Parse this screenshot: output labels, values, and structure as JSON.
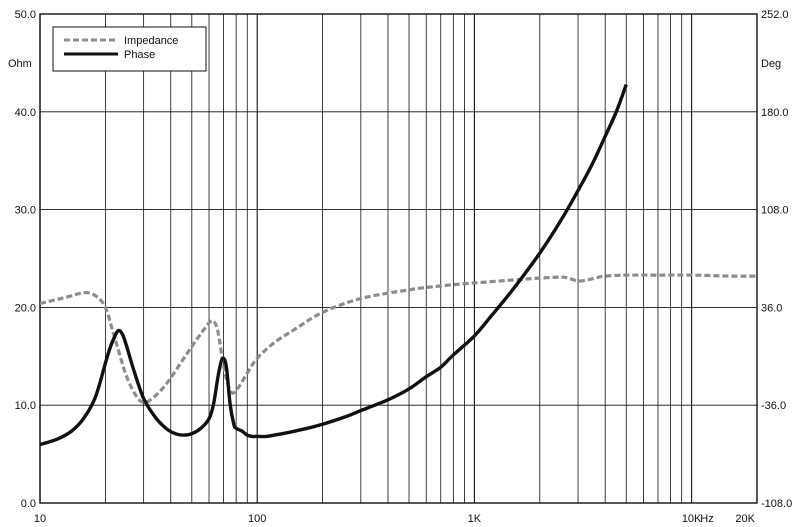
{
  "chart_data": {
    "type": "line",
    "x_scale": "log",
    "xlim": [
      10,
      20000
    ],
    "x_ticks": [
      {
        "value": 10,
        "label": "10"
      },
      {
        "value": 100,
        "label": "100"
      },
      {
        "value": 1000,
        "label": "1K"
      },
      {
        "value": 10000,
        "label": "10K"
      },
      {
        "value": 20000,
        "label": "20K"
      }
    ],
    "x_unit": "Hz",
    "y_left": {
      "unit": "Ohm",
      "lim": [
        0,
        50
      ],
      "ticks": [
        "0.0",
        "10.0",
        "20.0",
        "30.0",
        "40.0",
        "50.0"
      ]
    },
    "y_right": {
      "unit": "Deg",
      "lim": [
        -108,
        252
      ],
      "ticks": [
        "-108.0",
        "-36.0",
        "36.0",
        "108.0",
        "180.0",
        "252.0"
      ]
    },
    "grid": true,
    "legend_position": "top-left",
    "legend": [
      {
        "label": "Impedance",
        "style": "dashed",
        "color": "#8c8c8c"
      },
      {
        "label": "Phase",
        "style": "solid",
        "color": "#111111"
      }
    ],
    "series": [
      {
        "name": "Impedance",
        "axis": "left",
        "color": "#8c8c8c",
        "style": "dashed",
        "x": [
          10,
          13,
          16,
          18,
          20,
          22,
          25,
          28,
          30,
          32,
          36,
          40,
          45,
          50,
          55,
          60,
          63,
          66,
          70,
          75,
          80,
          90,
          100,
          120,
          150,
          200,
          300,
          500,
          700,
          1000,
          1500,
          2000,
          2500,
          2700,
          3000,
          3300,
          3600,
          4000,
          5000,
          7000,
          10000,
          15000,
          20000
        ],
        "y": [
          20.4,
          21.0,
          21.5,
          21.2,
          20.0,
          17.0,
          13.0,
          10.8,
          10.3,
          10.5,
          11.5,
          12.8,
          14.5,
          16.0,
          17.3,
          18.4,
          18.6,
          17.5,
          14.0,
          11.5,
          11.5,
          13.3,
          14.8,
          16.4,
          17.8,
          19.5,
          20.9,
          21.8,
          22.2,
          22.5,
          22.8,
          23.0,
          23.1,
          23.0,
          22.7,
          22.8,
          23.0,
          23.2,
          23.3,
          23.3,
          23.3,
          23.2,
          23.2
        ]
      },
      {
        "name": "Phase",
        "axis": "right",
        "color": "#111111",
        "style": "solid",
        "x": [
          10,
          12,
          14,
          16,
          18,
          20,
          21,
          22,
          23,
          24,
          25,
          27,
          30,
          34,
          38,
          42,
          46,
          50,
          55,
          60,
          63,
          66,
          69,
          72,
          75,
          78,
          80,
          85,
          90,
          95,
          100,
          110,
          120,
          140,
          170,
          200,
          250,
          300,
          400,
          500,
          600,
          700,
          800,
          1000,
          1200,
          1500,
          2000,
          2500,
          3000,
          3500,
          4000,
          4500,
          5000
        ],
        "y": [
          -65,
          -61,
          -55,
          -45,
          -30,
          -5,
          6,
          14,
          19,
          16,
          8,
          -10,
          -31,
          -45,
          -53,
          -57,
          -58,
          -57,
          -53,
          -46,
          -35,
          -15,
          -2,
          -7,
          -35,
          -50,
          -53,
          -55,
          -58,
          -59,
          -59,
          -59,
          -58,
          -56,
          -53,
          -50,
          -45,
          -40,
          -32,
          -24,
          -15,
          -8,
          1,
          15,
          30,
          49,
          76,
          100,
          122,
          142,
          162,
          180,
          200
        ]
      }
    ]
  }
}
